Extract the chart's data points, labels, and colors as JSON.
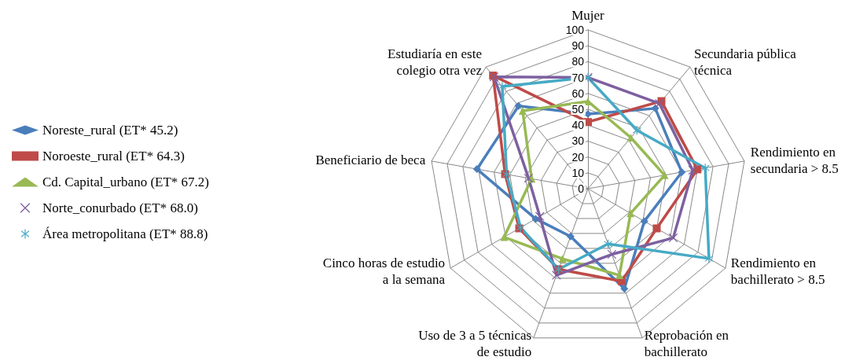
{
  "chart_data": {
    "type": "radar",
    "categories": [
      "Mujer",
      "Secundaria pública\ntécnica",
      "Rendimiento en\nsecundaria > 8.5",
      "Rendimiento en\nbachillerato > 8.5",
      "Reprobación en\nbachillerato",
      "Uso de 3 a 5 técnicas\nde estudio",
      "Cinco horas de estudio\na la semana",
      "Beneficiario de beca",
      "Estudiaría en este\ncolegio otra vez"
    ],
    "ylim": [
      0,
      100
    ],
    "yticks": [
      0,
      10,
      20,
      30,
      40,
      50,
      60,
      70,
      80,
      90,
      100
    ],
    "legend": "left",
    "grid": true,
    "series": [
      {
        "name": "Noreste_rural (ET* 45.2)",
        "color": "#4a7ebb",
        "marker": "diamond",
        "values": [
          47,
          66,
          60,
          41,
          67,
          32,
          38,
          71,
          68
        ]
      },
      {
        "name": "Noroeste_rural (ET* 64.3)",
        "color": "#be4b48",
        "marker": "square",
        "values": [
          42,
          72,
          70,
          50,
          62,
          54,
          50,
          53,
          93
        ]
      },
      {
        "name": "Cd. Capital_urbano (ET* 67.2)",
        "color": "#98b954",
        "marker": "triangle",
        "values": [
          55,
          42,
          49,
          31,
          58,
          47,
          61,
          36,
          64
        ]
      },
      {
        "name": "Norte_conurbado (ET* 68.0)",
        "color": "#7d60a0",
        "marker": "cross",
        "values": [
          70,
          70,
          67,
          62,
          44,
          58,
          35,
          38,
          92
        ]
      },
      {
        "name": "Área metropolitana (ET* 88.8)",
        "color": "#46aac5",
        "marker": "star",
        "values": [
          70,
          48,
          75,
          88,
          37,
          54,
          49,
          52,
          84
        ]
      }
    ]
  }
}
